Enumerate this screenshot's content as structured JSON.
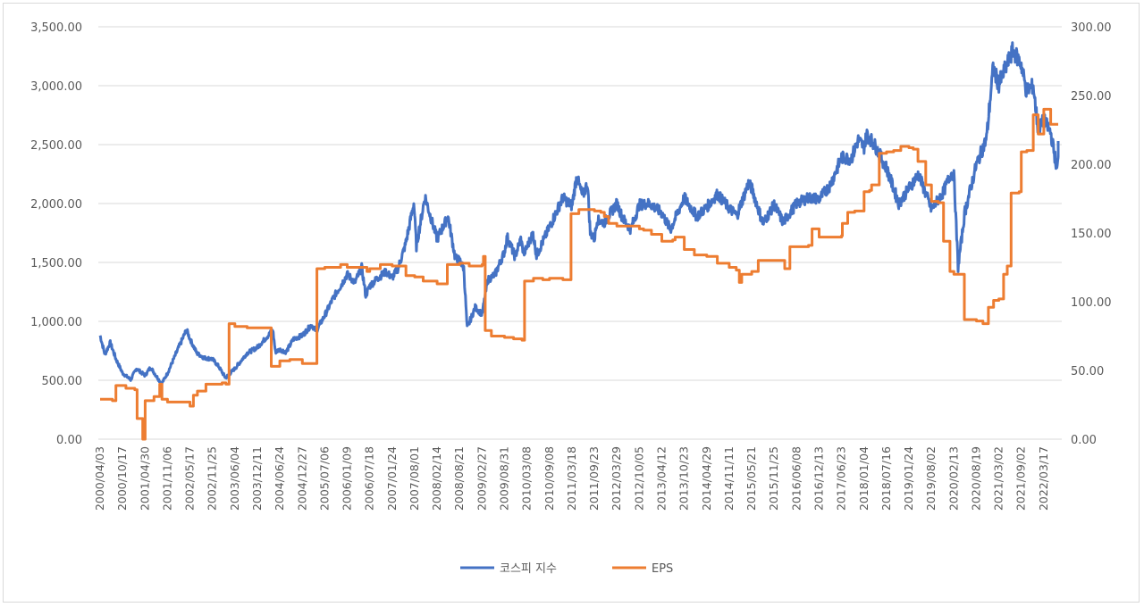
{
  "chart_data": {
    "type": "line",
    "title": "",
    "xlabel": "",
    "ylabel": "",
    "y_left": {
      "min": 0,
      "max": 3500,
      "step": 500,
      "tick_labels": [
        "0.00",
        "500.00",
        "1,000.00",
        "1,500.00",
        "2,000.00",
        "2,500.00",
        "3,000.00",
        "3,500.00"
      ]
    },
    "y_right": {
      "min": 0,
      "max": 300,
      "step": 50,
      "tick_labels": [
        "0.00",
        "50.00",
        "100.00",
        "150.00",
        "200.00",
        "250.00",
        "300.00"
      ]
    },
    "x_tick_labels": [
      "2000/04/03",
      "2000/10/17",
      "2001/04/30",
      "2001/11/06",
      "2002/05/17",
      "2002/11/25",
      "2003/06/04",
      "2003/12/11",
      "2004/06/24",
      "2004/12/27",
      "2005/07/06",
      "2006/01/09",
      "2006/07/18",
      "2007/01/24",
      "2007/08/01",
      "2008/02/14",
      "2008/08/21",
      "2009/02/27",
      "2009/08/31",
      "2010/03/08",
      "2010/09/08",
      "2011/03/18",
      "2011/09/23",
      "2012/03/29",
      "2012/10/05",
      "2013/04/12",
      "2013/10/23",
      "2014/04/29",
      "2014/11/11",
      "2015/05/21",
      "2015/11/25",
      "2016/06/08",
      "2016/12/13",
      "2017/06/23",
      "2018/01/04",
      "2018/07/16",
      "2019/01/24",
      "2019/08/02",
      "2020/02/13",
      "2020/08/19",
      "2021/03/02",
      "2021/09/02",
      "2022/03/17"
    ],
    "grid": "horizontal",
    "legend_position": "bottom",
    "series": [
      {
        "name": "코스피 지수",
        "axis": "left",
        "color": "#4472c4",
        "points": [
          [
            "2000/04/03",
            880
          ],
          [
            "2000/05/15",
            720
          ],
          [
            "2000/07/01",
            820
          ],
          [
            "2000/08/20",
            680
          ],
          [
            "2000/10/17",
            560
          ],
          [
            "2000/12/26",
            505
          ],
          [
            "2001/02/15",
            600
          ],
          [
            "2001/04/30",
            540
          ],
          [
            "2001/06/15",
            610
          ],
          [
            "2001/09/17",
            470
          ],
          [
            "2001/11/06",
            560
          ],
          [
            "2002/01/15",
            720
          ],
          [
            "2002/04/18",
            930
          ],
          [
            "2002/05/17",
            850
          ],
          [
            "2002/07/15",
            730
          ],
          [
            "2002/09/15",
            690
          ],
          [
            "2002/11/25",
            680
          ],
          [
            "2003/01/15",
            620
          ],
          [
            "2003/03/17",
            520
          ],
          [
            "2003/06/04",
            600
          ],
          [
            "2003/09/15",
            730
          ],
          [
            "2003/12/11",
            780
          ],
          [
            "2004/03/15",
            880
          ],
          [
            "2004/04/23",
            930
          ],
          [
            "2004/05/17",
            740
          ],
          [
            "2004/06/24",
            760
          ],
          [
            "2004/08/15",
            740
          ],
          [
            "2004/10/15",
            850
          ],
          [
            "2004/12/27",
            880
          ],
          [
            "2005/03/15",
            970
          ],
          [
            "2005/04/25",
            920
          ],
          [
            "2005/07/06",
            1050
          ],
          [
            "2005/09/15",
            1200
          ],
          [
            "2005/11/15",
            1300
          ],
          [
            "2006/01/09",
            1400
          ],
          [
            "2006/03/15",
            1330
          ],
          [
            "2006/05/11",
            1460
          ],
          [
            "2006/06/14",
            1220
          ],
          [
            "2006/07/18",
            1300
          ],
          [
            "2006/09/15",
            1360
          ],
          [
            "2006/12/01",
            1420
          ],
          [
            "2007/01/24",
            1370
          ],
          [
            "2007/03/15",
            1450
          ],
          [
            "2007/05/15",
            1650
          ],
          [
            "2007/07/25",
            2000
          ],
          [
            "2007/08/16",
            1640
          ],
          [
            "2007/08/01",
            1900
          ],
          [
            "2007/10/31",
            2060
          ],
          [
            "2007/12/15",
            1900
          ],
          [
            "2008/02/14",
            1700
          ],
          [
            "2008/05/16",
            1890
          ],
          [
            "2008/07/15",
            1540
          ],
          [
            "2008/08/21",
            1520
          ],
          [
            "2008/09/25",
            1450
          ],
          [
            "2008/10/24",
            940
          ],
          [
            "2008/12/31",
            1120
          ],
          [
            "2009/02/27",
            1060
          ],
          [
            "2009/04/15",
            1350
          ],
          [
            "2009/06/15",
            1400
          ],
          [
            "2009/08/31",
            1590
          ],
          [
            "2009/09/22",
            1720
          ],
          [
            "2009/11/27",
            1550
          ],
          [
            "2010/01/15",
            1700
          ],
          [
            "2010/02/08",
            1570
          ],
          [
            "2010/03/08",
            1630
          ],
          [
            "2010/04/26",
            1750
          ],
          [
            "2010/05/25",
            1560
          ],
          [
            "2010/09/08",
            1800
          ],
          [
            "2010/12/31",
            2050
          ],
          [
            "2011/03/18",
            1980
          ],
          [
            "2011/04/27",
            2230
          ],
          [
            "2011/06/15",
            2060
          ],
          [
            "2011/07/27",
            2170
          ],
          [
            "2011/08/19",
            1750
          ],
          [
            "2011/09/23",
            1700
          ],
          [
            "2011/10/15",
            1860
          ],
          [
            "2011/12/15",
            1840
          ],
          [
            "2012/03/29",
            2000
          ],
          [
            "2012/05/15",
            1880
          ],
          [
            "2012/07/24",
            1780
          ],
          [
            "2012/10/05",
            1990
          ],
          [
            "2012/12/31",
            2000
          ],
          [
            "2013/04/12",
            1920
          ],
          [
            "2013/06/25",
            1780
          ],
          [
            "2013/10/23",
            2050
          ],
          [
            "2014/02/04",
            1890
          ],
          [
            "2014/04/29",
            1970
          ],
          [
            "2014/07/30",
            2080
          ],
          [
            "2014/11/11",
            1960
          ],
          [
            "2015/01/15",
            1900
          ],
          [
            "2015/04/23",
            2170
          ],
          [
            "2015/05/21",
            2130
          ],
          [
            "2015/08/24",
            1830
          ],
          [
            "2015/11/25",
            1990
          ],
          [
            "2016/02/12",
            1840
          ],
          [
            "2016/06/08",
            2000
          ],
          [
            "2016/09/15",
            2050
          ],
          [
            "2016/12/13",
            2040
          ],
          [
            "2017/03/15",
            2150
          ],
          [
            "2017/06/23",
            2390
          ],
          [
            "2017/09/15",
            2380
          ],
          [
            "2017/11/15",
            2540
          ],
          [
            "2018/01/04",
            2480
          ],
          [
            "2018/01/29",
            2590
          ],
          [
            "2018/04/15",
            2480
          ],
          [
            "2018/07/16",
            2300
          ],
          [
            "2018/10/29",
            2000
          ],
          [
            "2019/01/24",
            2130
          ],
          [
            "2019/04/15",
            2250
          ],
          [
            "2019/08/02",
            1950
          ],
          [
            "2019/11/15",
            2100
          ],
          [
            "2020/01/20",
            2260
          ],
          [
            "2020/02/13",
            2240
          ],
          [
            "2020/03/19",
            1460
          ],
          [
            "2020/05/15",
            1930
          ],
          [
            "2020/08/19",
            2330
          ],
          [
            "2020/11/15",
            2550
          ],
          [
            "2021/01/11",
            3150
          ],
          [
            "2021/03/02",
            3010
          ],
          [
            "2021/06/25",
            3300
          ],
          [
            "2021/09/02",
            3180
          ],
          [
            "2021/10/15",
            2960
          ],
          [
            "2021/12/15",
            3000
          ],
          [
            "2022/01/27",
            2620
          ],
          [
            "2022/03/17",
            2710
          ],
          [
            "2022/05/15",
            2600
          ],
          [
            "2022/07/06",
            2300
          ],
          [
            "2022/08/15",
            2530
          ]
        ]
      },
      {
        "name": "EPS",
        "axis": "right",
        "color": "#ed7d31",
        "points": [
          [
            "2000/04/03",
            29
          ],
          [
            "2000/07/20",
            28
          ],
          [
            "2000/08/20",
            39
          ],
          [
            "2000/11/15",
            37
          ],
          [
            "2001/01/31",
            36
          ],
          [
            "2001/02/20",
            15
          ],
          [
            "2001/04/10",
            0
          ],
          [
            "2001/05/01",
            28
          ],
          [
            "2001/07/15",
            31
          ],
          [
            "2001/09/01",
            40
          ],
          [
            "2001/09/20",
            29
          ],
          [
            "2001/11/06",
            27
          ],
          [
            "2002/03/01",
            27
          ],
          [
            "2002/05/17",
            24
          ],
          [
            "2002/06/15",
            32
          ],
          [
            "2002/07/20",
            35
          ],
          [
            "2002/09/30",
            40
          ],
          [
            "2002/11/25",
            40
          ],
          [
            "2003/02/15",
            41
          ],
          [
            "2003/03/20",
            40
          ],
          [
            "2003/04/15",
            84
          ],
          [
            "2003/06/04",
            82
          ],
          [
            "2003/09/15",
            81
          ],
          [
            "2003/12/11",
            81
          ],
          [
            "2004/03/15",
            81
          ],
          [
            "2004/04/10",
            53
          ],
          [
            "2004/06/24",
            57
          ],
          [
            "2004/09/15",
            58
          ],
          [
            "2004/12/27",
            55
          ],
          [
            "2005/04/15",
            55
          ],
          [
            "2005/04/30",
            124
          ],
          [
            "2005/07/06",
            125
          ],
          [
            "2005/11/15",
            127
          ],
          [
            "2006/01/09",
            125
          ],
          [
            "2006/05/15",
            125
          ],
          [
            "2006/06/25",
            122
          ],
          [
            "2006/07/18",
            124
          ],
          [
            "2006/10/15",
            127
          ],
          [
            "2007/01/24",
            126
          ],
          [
            "2007/04/15",
            126
          ],
          [
            "2007/05/20",
            119
          ],
          [
            "2007/08/01",
            118
          ],
          [
            "2007/10/15",
            115
          ],
          [
            "2008/02/14",
            113
          ],
          [
            "2008/04/25",
            113
          ],
          [
            "2008/05/10",
            127
          ],
          [
            "2008/08/21",
            128
          ],
          [
            "2008/11/10",
            126
          ],
          [
            "2009/02/27",
            127
          ],
          [
            "2009/03/10",
            133
          ],
          [
            "2009/03/25",
            79
          ],
          [
            "2009/05/15",
            75
          ],
          [
            "2009/08/31",
            74
          ],
          [
            "2009/11/15",
            73
          ],
          [
            "2010/01/25",
            72
          ],
          [
            "2010/02/15",
            115
          ],
          [
            "2010/04/30",
            117
          ],
          [
            "2010/07/15",
            116
          ],
          [
            "2010/09/08",
            117
          ],
          [
            "2010/12/31",
            116
          ],
          [
            "2011/03/01",
            116
          ],
          [
            "2011/03/10",
            164
          ],
          [
            "2011/05/15",
            167
          ],
          [
            "2011/09/23",
            166
          ],
          [
            "2011/11/15",
            165
          ],
          [
            "2011/12/15",
            162
          ],
          [
            "2012/01/20",
            157
          ],
          [
            "2012/03/29",
            155
          ],
          [
            "2012/07/15",
            155
          ],
          [
            "2012/10/05",
            153
          ],
          [
            "2012/11/10",
            152
          ],
          [
            "2013/01/15",
            149
          ],
          [
            "2013/04/12",
            144
          ],
          [
            "2013/07/15",
            145
          ],
          [
            "2013/08/05",
            147
          ],
          [
            "2013/10/23",
            138
          ],
          [
            "2014/01/15",
            134
          ],
          [
            "2014/04/29",
            133
          ],
          [
            "2014/07/30",
            128
          ],
          [
            "2014/11/11",
            125
          ],
          [
            "2015/01/10",
            123
          ],
          [
            "2015/02/05",
            114
          ],
          [
            "2015/02/25",
            120
          ],
          [
            "2015/05/21",
            122
          ],
          [
            "2015/07/15",
            130
          ],
          [
            "2015/11/25",
            130
          ],
          [
            "2016/02/15",
            130
          ],
          [
            "2016/02/25",
            124
          ],
          [
            "2016/04/10",
            140
          ],
          [
            "2016/06/08",
            140
          ],
          [
            "2016/09/15",
            141
          ],
          [
            "2016/10/15",
            153
          ],
          [
            "2016/12/13",
            147
          ],
          [
            "2017/03/15",
            147
          ],
          [
            "2017/06/23",
            148
          ],
          [
            "2017/06/30",
            157
          ],
          [
            "2017/08/15",
            165
          ],
          [
            "2017/10/15",
            166
          ],
          [
            "2018/01/04",
            180
          ],
          [
            "2018/02/20",
            181
          ],
          [
            "2018/03/10",
            185
          ],
          [
            "2018/05/15",
            208
          ],
          [
            "2018/07/16",
            209
          ],
          [
            "2018/09/15",
            210
          ],
          [
            "2018/11/15",
            213
          ],
          [
            "2019/01/24",
            212
          ],
          [
            "2019/03/01",
            211
          ],
          [
            "2019/04/10",
            202
          ],
          [
            "2019/06/15",
            185
          ],
          [
            "2019/08/02",
            173
          ],
          [
            "2019/10/01",
            172
          ],
          [
            "2019/11/15",
            144
          ],
          [
            "2020/01/10",
            122
          ],
          [
            "2020/02/13",
            120
          ],
          [
            "2020/04/15",
            120
          ],
          [
            "2020/05/10",
            87
          ],
          [
            "2020/08/19",
            86
          ],
          [
            "2020/10/15",
            84
          ],
          [
            "2020/12/01",
            96
          ],
          [
            "2021/01/15",
            101
          ],
          [
            "2021/03/02",
            102
          ],
          [
            "2021/04/10",
            120
          ],
          [
            "2021/05/10",
            126
          ],
          [
            "2021/06/10",
            179
          ],
          [
            "2021/08/15",
            180
          ],
          [
            "2021/09/02",
            209
          ],
          [
            "2021/10/20",
            210
          ],
          [
            "2021/12/15",
            236
          ],
          [
            "2022/01/27",
            222
          ],
          [
            "2022/03/17",
            240
          ],
          [
            "2022/05/15",
            229
          ],
          [
            "2022/08/15",
            229
          ]
        ]
      }
    ]
  }
}
